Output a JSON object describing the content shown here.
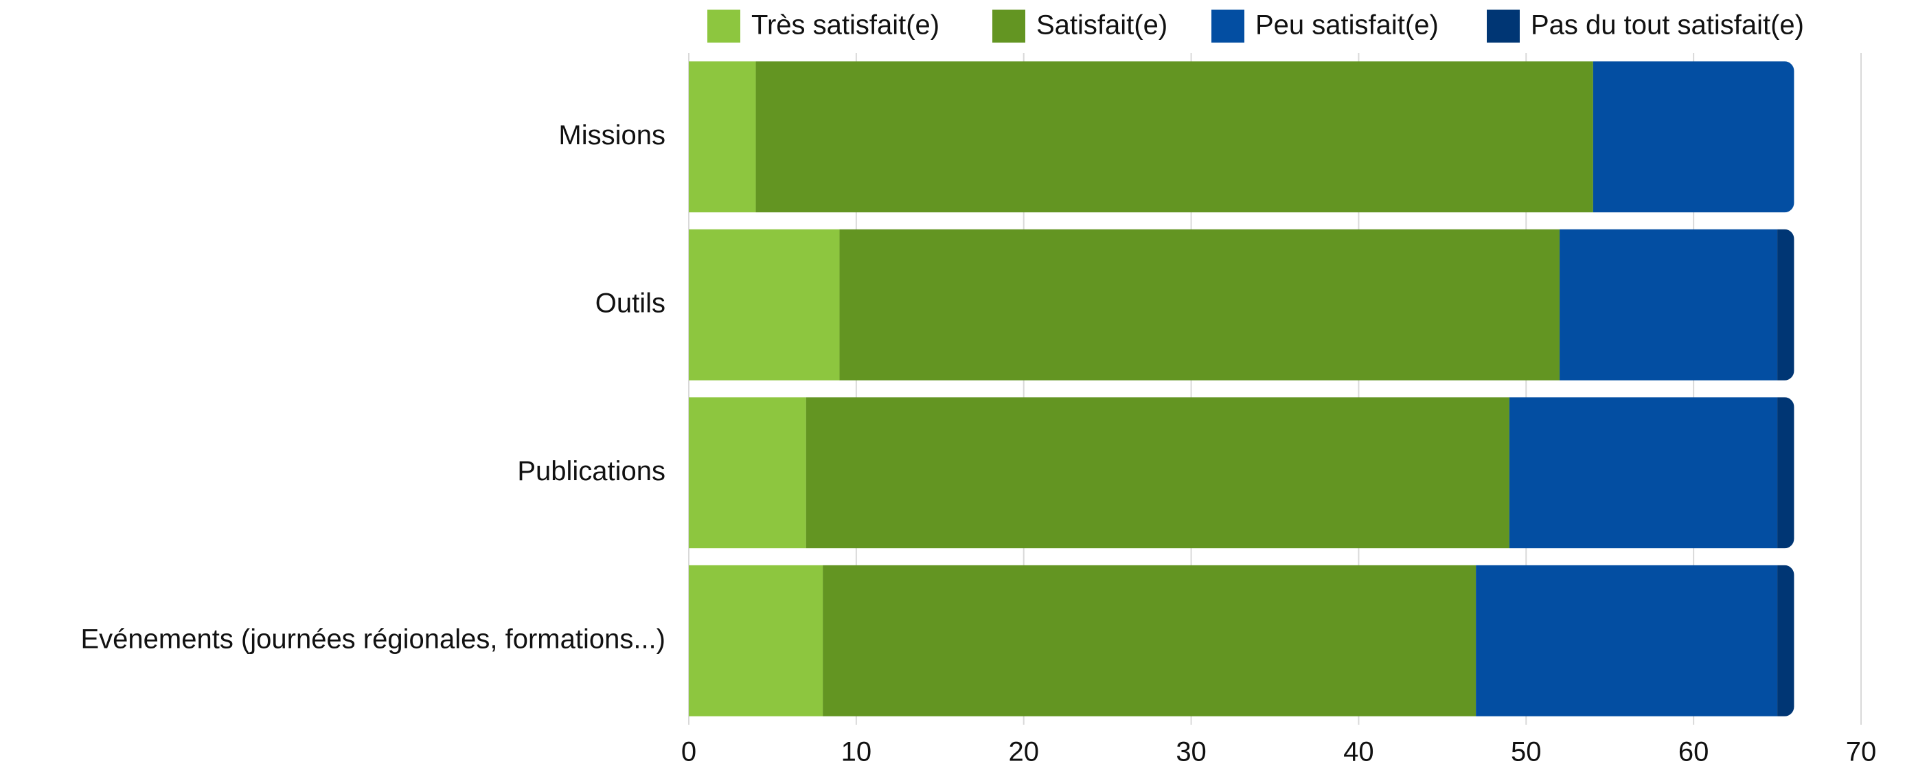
{
  "chart_data": {
    "type": "stacked_barh",
    "categories": [
      "Missions",
      "Outils",
      "Publications",
      "Evénements (journées régionales, formations...)"
    ],
    "series": [
      {
        "name": "Très satisfait(e)",
        "color": "#8dc63f",
        "values": [
          4,
          9,
          7,
          8
        ]
      },
      {
        "name": "Satisfait(e)",
        "color": "#639522",
        "values": [
          50,
          43,
          42,
          39
        ]
      },
      {
        "name": "Peu satisfait(e)",
        "color": "#034ea2",
        "values": [
          12,
          13,
          16,
          18
        ]
      },
      {
        "name": "Pas du tout satisfait(e)",
        "color": "#003674",
        "values": [
          0,
          1,
          1,
          1
        ]
      }
    ],
    "xlim": [
      0,
      70
    ],
    "xticks": [
      0,
      10,
      20,
      30,
      40,
      50,
      60,
      70
    ],
    "grid": true,
    "legend": "top"
  }
}
